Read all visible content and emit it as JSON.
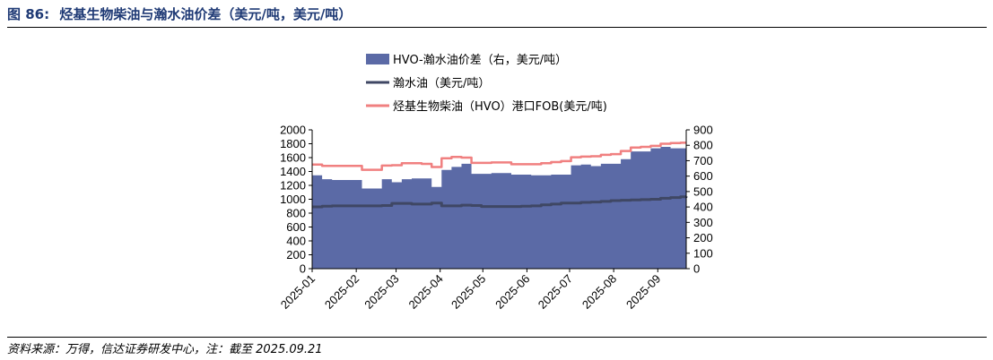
{
  "header": {
    "figure_number": "图 86:",
    "title": "烃基生物柴油与瀚水油价差（美元/吨，美元/吨）"
  },
  "footer": {
    "source": "资料来源：万得，信达证券研发中心，注：截至 2025.09.21"
  },
  "colors": {
    "spread_area": "#5b6aa6",
    "diesel_line": "#3f4764",
    "hvo_line": "#f08080",
    "title": "#1f3a75"
  },
  "chart_data": {
    "type": "area",
    "x_dates": [
      "2025-01-01",
      "2025-01-08",
      "2025-01-15",
      "2025-01-22",
      "2025-01-29",
      "2025-02-05",
      "2025-02-12",
      "2025-02-19",
      "2025-02-26",
      "2025-03-05",
      "2025-03-12",
      "2025-03-19",
      "2025-03-26",
      "2025-04-02",
      "2025-04-09",
      "2025-04-16",
      "2025-04-23",
      "2025-04-30",
      "2025-05-07",
      "2025-05-14",
      "2025-05-21",
      "2025-05-28",
      "2025-06-04",
      "2025-06-11",
      "2025-06-18",
      "2025-06-25",
      "2025-07-02",
      "2025-07-09",
      "2025-07-16",
      "2025-07-23",
      "2025-07-30",
      "2025-08-06",
      "2025-08-13",
      "2025-08-20",
      "2025-08-27",
      "2025-09-03",
      "2025-09-10",
      "2025-09-17",
      "2025-09-21"
    ],
    "x_tick_labels": [
      "2025-01",
      "2025-02",
      "2025-03",
      "2025-04",
      "2025-05",
      "2025-06",
      "2025-07",
      "2025-08",
      "2025-09"
    ],
    "y_left_ticks": [
      0,
      200,
      400,
      600,
      800,
      1000,
      1200,
      1400,
      1600,
      1800,
      2000
    ],
    "y_right_ticks": [
      0,
      100,
      200,
      300,
      400,
      500,
      600,
      700,
      800,
      900
    ],
    "y_left_range": [
      0,
      2000
    ],
    "y_right_range": [
      0,
      900
    ],
    "series": [
      {
        "name": "HVO-瀚水油价差（右，美元/吨）",
        "axis": "right",
        "style": "area",
        "values": [
          605,
          580,
          575,
          575,
          575,
          520,
          520,
          580,
          560,
          580,
          585,
          585,
          530,
          640,
          660,
          680,
          615,
          615,
          620,
          620,
          610,
          610,
          605,
          605,
          610,
          610,
          670,
          675,
          665,
          680,
          680,
          710,
          760,
          760,
          780,
          790,
          780,
          780,
          780
        ]
      },
      {
        "name": "瀚水油（美元/吨）",
        "axis": "left",
        "style": "line",
        "values": [
          890,
          900,
          905,
          905,
          905,
          905,
          905,
          910,
          940,
          940,
          930,
          930,
          945,
          905,
          905,
          915,
          910,
          895,
          895,
          895,
          895,
          900,
          905,
          920,
          930,
          945,
          945,
          955,
          960,
          970,
          980,
          985,
          990,
          995,
          1000,
          1015,
          1025,
          1035,
          1040
        ]
      },
      {
        "name": "烃基生物柴油（HVO）港口FOB(美元/吨)",
        "axis": "left",
        "style": "line",
        "values": [
          1500,
          1480,
          1480,
          1480,
          1480,
          1425,
          1425,
          1485,
          1490,
          1520,
          1520,
          1510,
          1465,
          1590,
          1610,
          1600,
          1525,
          1525,
          1530,
          1530,
          1505,
          1505,
          1505,
          1520,
          1535,
          1550,
          1605,
          1615,
          1620,
          1640,
          1650,
          1695,
          1745,
          1755,
          1770,
          1800,
          1810,
          1815,
          1815
        ]
      }
    ],
    "legend_position": "top-center",
    "grid": false
  }
}
